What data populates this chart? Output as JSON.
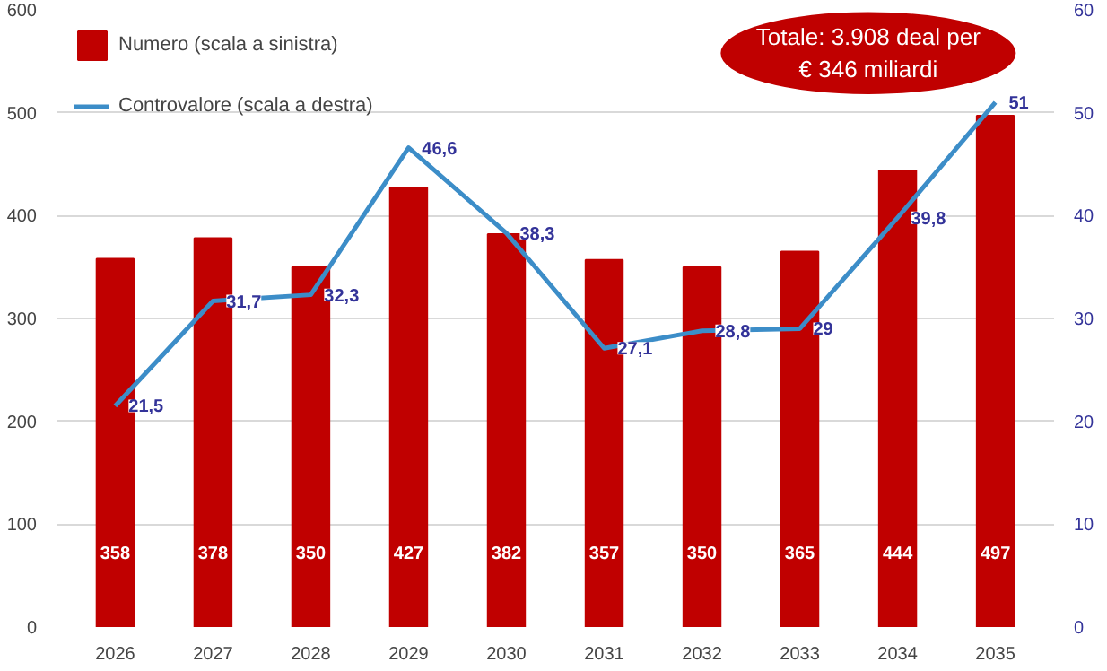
{
  "chart_data": {
    "type": "bar",
    "categories": [
      "2026",
      "2027",
      "2028",
      "2029",
      "2030",
      "2031",
      "2032",
      "2033",
      "2034",
      "2035"
    ],
    "series": [
      {
        "name": "Numero (scala a sinistra)",
        "color": "#c00000",
        "values": [
          358,
          378,
          350,
          427,
          382,
          357,
          350,
          365,
          444,
          497
        ],
        "value_labels": [
          "358",
          "378",
          "350",
          "427",
          "382",
          "357",
          "350",
          "365",
          "444",
          "497"
        ]
      },
      {
        "name": "Controvalore (scala a destra)",
        "type": "line",
        "axis": "y2",
        "color": "#3c8dc8",
        "values": [
          21.5,
          31.7,
          32.3,
          46.6,
          38.3,
          27.1,
          28.8,
          29,
          39.8,
          51
        ],
        "value_labels": [
          "21,5",
          "31,7",
          "32,3",
          "46,6",
          "38,3",
          "27,1",
          "28,8",
          "29",
          "39,8",
          "51"
        ]
      }
    ],
    "ylim": [
      0,
      600
    ],
    "yticks": [
      0,
      100,
      200,
      300,
      400,
      500,
      600
    ],
    "y2lim": [
      0,
      60
    ],
    "y2ticks": [
      0,
      10,
      20,
      30,
      40,
      50,
      60
    ],
    "grid": "y",
    "legend": "top left",
    "marker": "none",
    "line_style": "solid",
    "annotations": [
      "Totale: 3.908 deal per\n€ 346 miliardi"
    ]
  }
}
